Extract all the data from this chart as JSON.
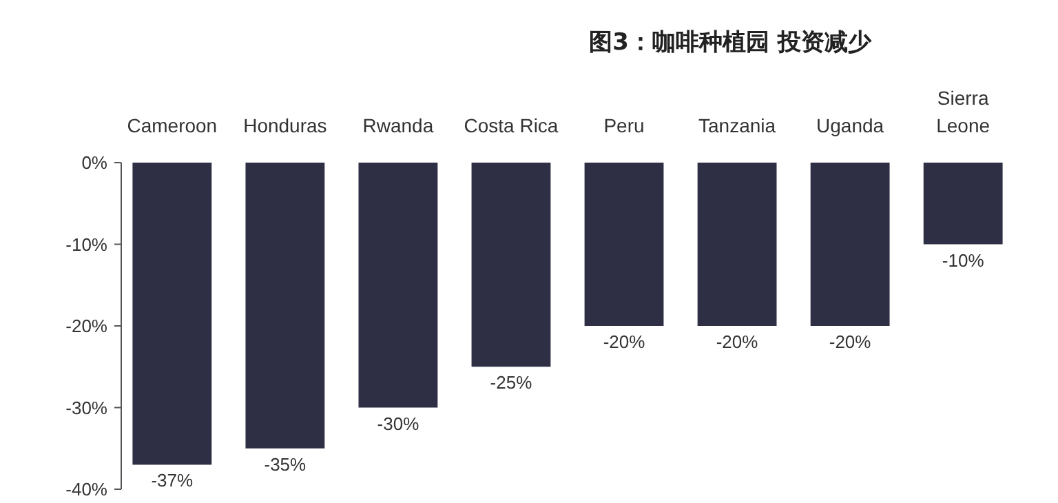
{
  "chart_data": {
    "type": "bar",
    "title": "图3：咖啡种植园 投资减少",
    "categories": [
      "Cameroon",
      "Honduras",
      "Rwanda",
      "Costa Rica",
      "Peru",
      "Tanzania",
      "Uganda",
      "Sierra Leone"
    ],
    "values": [
      -37,
      -35,
      -30,
      -25,
      -20,
      -20,
      -20,
      -10
    ],
    "value_labels": [
      "-37%",
      "-35%",
      "-30%",
      "-25%",
      "-20%",
      "-20%",
      "-20%",
      "-10%"
    ],
    "color": "#2e2f45",
    "ylim": [
      -40,
      0
    ],
    "yticks": [
      {
        "value": 0,
        "label": "0%"
      },
      {
        "value": -10,
        "label": "-10%"
      },
      {
        "value": -20,
        "label": "-20%"
      },
      {
        "value": -30,
        "label": "-30%"
      },
      {
        "value": -40,
        "label": "-40%"
      }
    ],
    "grid": false
  }
}
